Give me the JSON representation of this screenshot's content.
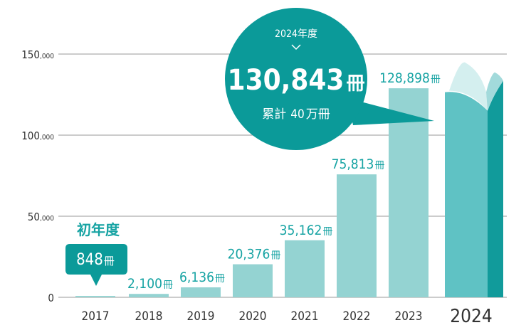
{
  "chart_data": {
    "type": "bar",
    "categories": [
      "2017",
      "2018",
      "2019",
      "2020",
      "2021",
      "2022",
      "2023",
      "2024"
    ],
    "values": [
      848,
      2100,
      6136,
      20376,
      35162,
      75813,
      128898,
      130843
    ],
    "value_labels": [
      "848",
      "2,100",
      "6,136",
      "20,376",
      "35,162",
      "75,813",
      "128,898",
      "130,843"
    ],
    "unit": "冊",
    "ylim": [
      0,
      150000
    ],
    "y_ticks": [
      {
        "value": 0,
        "main": "0",
        "suffix": ""
      },
      {
        "value": 50000,
        "main": "50",
        "suffix": ",000"
      },
      {
        "value": 100000,
        "main": "100",
        "suffix": ",000"
      },
      {
        "value": 150000,
        "main": "150",
        "suffix": ",000"
      }
    ],
    "grid": true,
    "highlight": {
      "category": "2024",
      "fiscal_label": "2024年度",
      "value_label": "130,843",
      "unit": "冊",
      "total_label": "累計",
      "total_value": "40",
      "total_unit": "万冊"
    },
    "first_year": {
      "category": "2017",
      "title": "初年度",
      "value_label": "848",
      "unit": "冊"
    }
  },
  "colors": {
    "bar": "#94d3d2",
    "label_teal": "#16a3a3",
    "callout": "#0b9a99",
    "book_front": "#5fc2c4",
    "book_side": "#119b9b",
    "book_page_left": "#d4efef",
    "book_page_right": "#a2dadb",
    "grid": "#9a9a9a",
    "axis_text": "#333333"
  }
}
